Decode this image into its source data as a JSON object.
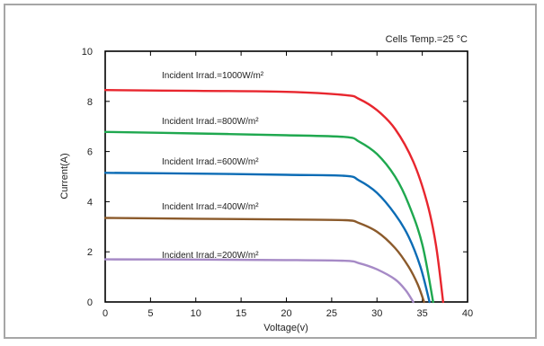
{
  "chart_data": {
    "type": "line",
    "annotation": "Cells Temp.=25 °C",
    "xlabel": "Voltage(v)",
    "ylabel": "Current(A)",
    "xlim": [
      0,
      40
    ],
    "ylim": [
      0,
      10
    ],
    "x_ticks": [
      0,
      5,
      10,
      15,
      20,
      25,
      30,
      35,
      40
    ],
    "y_ticks": [
      0,
      2,
      4,
      6,
      8,
      10
    ],
    "grid": false,
    "series": [
      {
        "name": "Incident Irrad.=1000W/m²",
        "color": "#e8262e",
        "points": [
          [
            0,
            8.45
          ],
          [
            10,
            8.42
          ],
          [
            20,
            8.38
          ],
          [
            26.5,
            8.25
          ],
          [
            28,
            8.1
          ],
          [
            30,
            7.65
          ],
          [
            32,
            6.9
          ],
          [
            34,
            5.6
          ],
          [
            35.5,
            4.0
          ],
          [
            36.5,
            2.3
          ],
          [
            37.3,
            0
          ]
        ]
      },
      {
        "name": "Incident Irrad.=800W/m²",
        "color": "#1fa84f",
        "points": [
          [
            0,
            6.78
          ],
          [
            10,
            6.72
          ],
          [
            20,
            6.65
          ],
          [
            26.5,
            6.58
          ],
          [
            28,
            6.4
          ],
          [
            30,
            5.9
          ],
          [
            32,
            5.0
          ],
          [
            33.5,
            3.9
          ],
          [
            35,
            2.3
          ],
          [
            36.2,
            0
          ]
        ]
      },
      {
        "name": "Incident Irrad.=600W/m²",
        "color": "#0c6cb5",
        "points": [
          [
            0,
            5.15
          ],
          [
            10,
            5.12
          ],
          [
            20,
            5.07
          ],
          [
            26.5,
            5.03
          ],
          [
            28,
            4.85
          ],
          [
            30,
            4.35
          ],
          [
            32,
            3.5
          ],
          [
            33.5,
            2.6
          ],
          [
            34.8,
            1.4
          ],
          [
            35.8,
            0
          ]
        ]
      },
      {
        "name": "Incident Irrad.=400W/m²",
        "color": "#8b5a2b",
        "points": [
          [
            0,
            3.35
          ],
          [
            10,
            3.32
          ],
          [
            20,
            3.29
          ],
          [
            26.5,
            3.26
          ],
          [
            28,
            3.15
          ],
          [
            30,
            2.8
          ],
          [
            32,
            2.15
          ],
          [
            33.5,
            1.4
          ],
          [
            34.5,
            0.7
          ],
          [
            35.2,
            0
          ]
        ]
      },
      {
        "name": "Incident Irrad.=200W/m²",
        "color": "#a68ac6",
        "points": [
          [
            0,
            1.7
          ],
          [
            10,
            1.69
          ],
          [
            20,
            1.67
          ],
          [
            26.5,
            1.64
          ],
          [
            28,
            1.55
          ],
          [
            30,
            1.3
          ],
          [
            32,
            0.9
          ],
          [
            33.2,
            0.45
          ],
          [
            34,
            0
          ]
        ]
      }
    ]
  }
}
